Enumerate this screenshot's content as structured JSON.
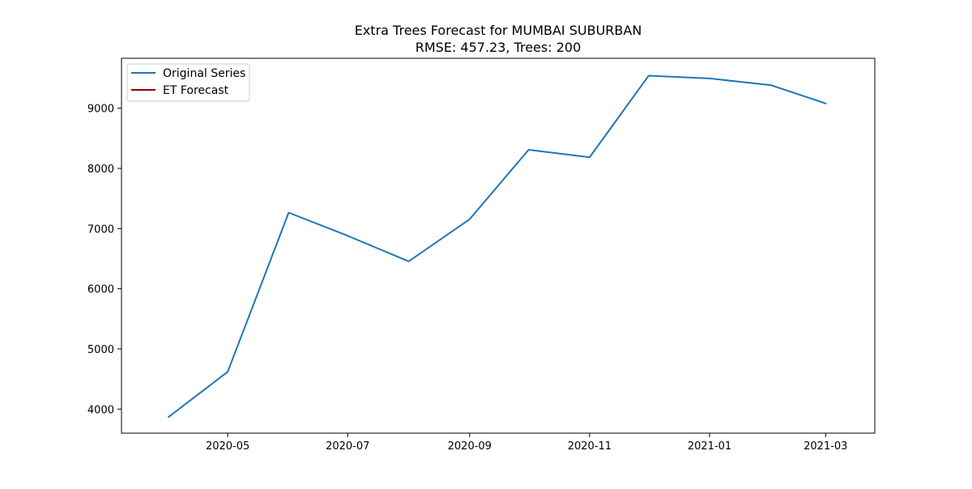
{
  "chart_data": {
    "type": "line",
    "title": "Extra Trees Forecast for MUMBAI SUBURBAN",
    "subtitle": "RMSE: 457.23, Trees: 200",
    "xlabel": "",
    "ylabel": "",
    "x_type": "date",
    "x_ticks": [
      "2020-05",
      "2020-07",
      "2020-09",
      "2020-11",
      "2021-01",
      "2021-03"
    ],
    "y_ticks": [
      4000,
      5000,
      6000,
      7000,
      8000,
      9000
    ],
    "xlim": [
      "2020-03-08",
      "2021-03-26"
    ],
    "ylim": [
      3600,
      9830
    ],
    "grid": false,
    "legend_position": "upper left",
    "series": [
      {
        "name": "Original Series",
        "color": "#1f77b4",
        "points": [
          {
            "x": "2020-04-01",
            "y": 3870
          },
          {
            "x": "2020-05-01",
            "y": 4620
          },
          {
            "x": "2020-06-01",
            "y": 7265
          },
          {
            "x": "2020-07-01",
            "y": 6880
          },
          {
            "x": "2020-08-01",
            "y": 6455
          },
          {
            "x": "2020-09-01",
            "y": 7155
          },
          {
            "x": "2020-10-01",
            "y": 8310
          },
          {
            "x": "2020-11-01",
            "y": 8185
          },
          {
            "x": "2020-12-01",
            "y": 9540
          },
          {
            "x": "2021-01-01",
            "y": 9495
          },
          {
            "x": "2021-02-01",
            "y": 9385
          },
          {
            "x": "2021-03-01",
            "y": 9080
          }
        ]
      },
      {
        "name": "ET Forecast",
        "color": "#8b0000",
        "points": []
      }
    ]
  }
}
